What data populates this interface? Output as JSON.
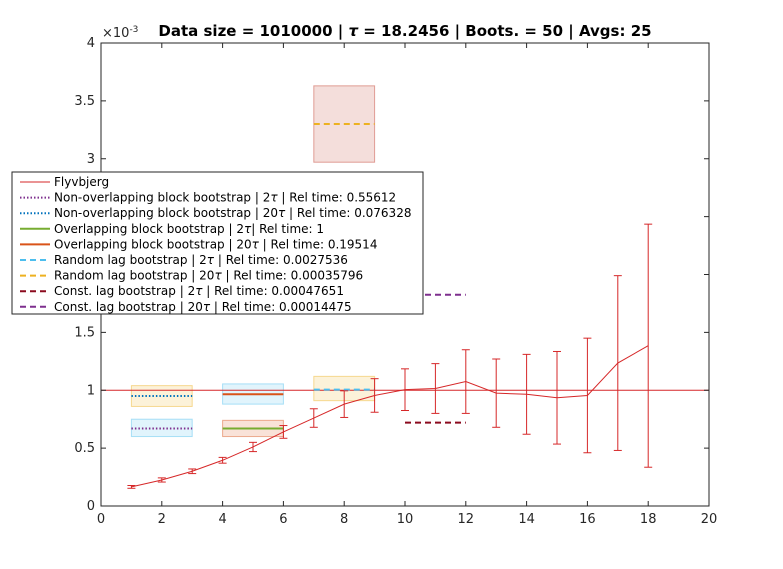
{
  "chart_data": {
    "type": "line",
    "title_parts": [
      "Data size = 1010000 | ",
      "τ",
      " = 18.2456 | Boots. = 50 | Avgs: 25"
    ],
    "xlim": [
      0,
      20
    ],
    "ylim": [
      0,
      0.004
    ],
    "x_ticks": [
      0,
      2,
      4,
      6,
      8,
      10,
      12,
      14,
      16,
      18,
      20
    ],
    "y_ticks": [
      0,
      0.0005,
      0.001,
      0.0015,
      0.002,
      0.0025,
      0.003,
      0.0035,
      0.004
    ],
    "y_tick_labels": [
      "0",
      "0.5",
      "1",
      "1.5",
      "2",
      "2.5",
      "3",
      "3.5",
      "4"
    ],
    "y_exponent_base": "×10",
    "y_exponent_power": "-3",
    "reference_line": {
      "y": 0.001,
      "color": "#d62728"
    },
    "flyvbjerg": {
      "name": "Flyvbjerg",
      "color": "#d62728",
      "x": [
        1,
        2,
        3,
        4,
        5,
        6,
        7,
        8,
        9,
        10,
        11,
        12,
        13,
        14,
        15,
        16,
        17,
        18
      ],
      "y": [
        0.000165,
        0.000225,
        0.0003,
        0.000395,
        0.00051,
        0.00064,
        0.00076,
        0.00088,
        0.000955,
        0.001005,
        0.001015,
        0.001075,
        0.000975,
        0.000965,
        0.000935,
        0.000955,
        0.001235,
        0.001385
      ],
      "err": [
        1.2e-05,
        1.8e-05,
        2e-05,
        2.5e-05,
        4e-05,
        5.5e-05,
        8e-05,
        0.000115,
        0.000145,
        0.00018,
        0.000215,
        0.000275,
        0.000295,
        0.000345,
        0.0004,
        0.000495,
        0.000755,
        0.00105
      ]
    },
    "bootstrap_methods": [
      {
        "name": "Non-overlapping block bootstrap | 2τ | Rel time:  0.55612",
        "label_parts": [
          "Non-overlapping block bootstrap | 2",
          "τ",
          " | Rel time:  0.55612"
        ],
        "color": "#7e2f8e",
        "dash": "dotted",
        "x_range": [
          1,
          3
        ],
        "y": 0.00067,
        "band": [
          0.0006,
          0.00075
        ],
        "band_color": "#4dbeee"
      },
      {
        "name": "Non-overlapping block bootstrap | 20τ | Rel time:  0.076328",
        "label_parts": [
          "Non-overlapping block bootstrap | 20",
          "τ",
          " | Rel time:  0.076328"
        ],
        "color": "#0072bd",
        "dash": "dotted",
        "x_range": [
          1,
          3
        ],
        "y": 0.00095,
        "band": [
          0.00086,
          0.00104
        ],
        "band_color": "#edb120"
      },
      {
        "name": "Overlapping block bootstrap | 2τ| Rel time:  1",
        "label_parts": [
          "Overlapping block bootstrap | 2",
          "τ",
          "| Rel time:  1"
        ],
        "color": "#77ac30",
        "dash": "solid",
        "x_range": [
          4,
          6
        ],
        "y": 0.00067,
        "band": [
          0.0006,
          0.00074
        ],
        "band_color": "#d95319"
      },
      {
        "name": "Overlapping block bootstrap | 20τ | Rel time:  0.19514",
        "label_parts": [
          "Overlapping block bootstrap | 20",
          "τ",
          " | Rel time:  0.19514"
        ],
        "color": "#d95319",
        "dash": "solid",
        "x_range": [
          4,
          6
        ],
        "y": 0.000965,
        "band": [
          0.00088,
          0.001055
        ],
        "band_color": "#4dbeee"
      },
      {
        "name": "Random lag bootstrap | 2τ | Rel time:  0.0027536",
        "label_parts": [
          "Random lag bootstrap | 2",
          "τ",
          " | Rel time:  0.0027536"
        ],
        "color": "#4dbeee",
        "dash": "dashed",
        "x_range": [
          7,
          9
        ],
        "y": 0.001005,
        "band": [
          0.00091,
          0.00112
        ],
        "band_color": "#edb120"
      },
      {
        "name": "Random lag bootstrap | 20τ | Rel time:  0.00035796",
        "label_parts": [
          "Random lag bootstrap | 20",
          "τ",
          " | Rel time:  0.00035796"
        ],
        "color": "#edb120",
        "dash": "dashed",
        "x_range": [
          7,
          9
        ],
        "y": 0.0033,
        "band": [
          0.00297,
          0.00363
        ],
        "band_color": "#c0392b"
      },
      {
        "name": "Const. lag bootstrap | 2τ | Rel time:  0.00047651",
        "label_parts": [
          "Const. lag bootstrap | 2",
          "τ",
          " | Rel time:  0.00047651"
        ],
        "color": "#8b0a1e",
        "dash": "dashed",
        "x_range": [
          10,
          12
        ],
        "y": 0.00072,
        "band": null,
        "band_color": null
      },
      {
        "name": "Const. lag bootstrap | 20τ | Rel time:  0.00014475",
        "label_parts": [
          "Const. lag bootstrap | 20",
          "τ",
          " | Rel time:  0.00014475"
        ],
        "color": "#7e2f8e",
        "dash": "dashed",
        "x_range": [
          10,
          12
        ],
        "y": 0.001825,
        "band": null,
        "band_color": null
      }
    ],
    "legend_position": "middle-left",
    "grid": false
  }
}
